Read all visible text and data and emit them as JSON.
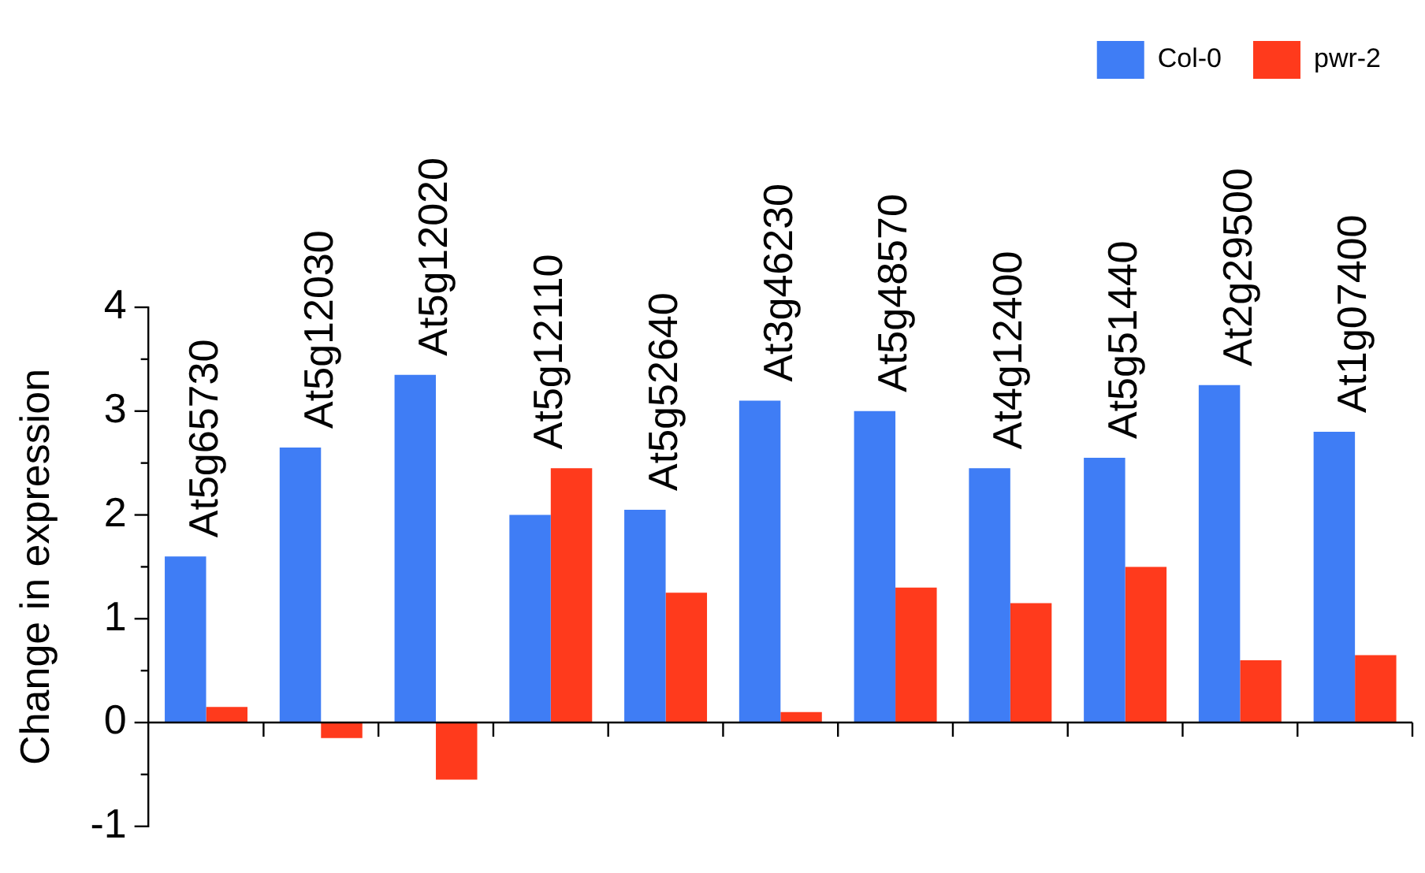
{
  "chart_data": {
    "type": "bar",
    "ylabel": "Change in expression",
    "categories": [
      "At5g65730",
      "At5g12030",
      "At5g12020",
      "At5g12110",
      "At5g52640",
      "At3g46230",
      "At5g48570",
      "At4g12400",
      "At5g51440",
      "At2g29500",
      "At1g07400"
    ],
    "series": [
      {
        "name": "Col-0",
        "color": "#3f7df5",
        "values": [
          1.6,
          2.65,
          3.35,
          2.0,
          2.05,
          3.1,
          3.0,
          2.45,
          2.55,
          3.25,
          2.8
        ]
      },
      {
        "name": "pwr-2",
        "color": "#ff3a1c",
        "values": [
          0.15,
          -0.15,
          -0.55,
          2.45,
          1.25,
          0.1,
          1.3,
          1.15,
          1.5,
          0.6,
          0.65
        ]
      }
    ],
    "ylim": [
      -1,
      4
    ],
    "yticks": [
      -1,
      {
        "value": -0.5,
        "label": null
      },
      0,
      {
        "value": 0.5,
        "label": null
      },
      1,
      {
        "value": 1.5,
        "label": null
      },
      2,
      {
        "value": 2.5,
        "label": null
      },
      3,
      {
        "value": 3.5,
        "label": null
      },
      4
    ],
    "legend": "top right"
  }
}
